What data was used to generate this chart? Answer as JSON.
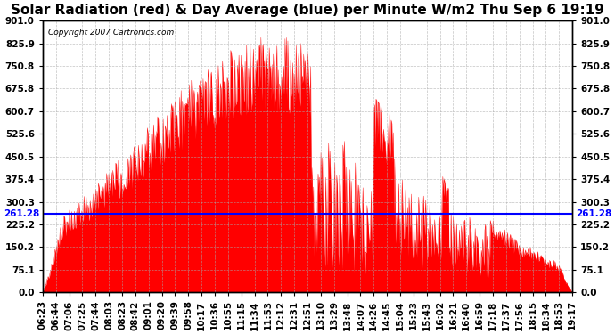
{
  "title": "Solar Radiation (red) & Day Average (blue) per Minute W/m2 Thu Sep 6 19:19",
  "copyright_text": "Copyright 2007 Cartronics.com",
  "avg_line_value": 261.28,
  "y_ticks": [
    0.0,
    75.1,
    150.2,
    225.2,
    300.3,
    375.4,
    450.5,
    525.6,
    600.7,
    675.8,
    750.8,
    825.9,
    901.0
  ],
  "y_min": 0.0,
  "y_max": 901.0,
  "x_labels": [
    "06:23",
    "06:44",
    "07:06",
    "07:25",
    "07:44",
    "08:03",
    "08:23",
    "08:42",
    "09:01",
    "09:20",
    "09:39",
    "09:58",
    "10:17",
    "10:36",
    "10:55",
    "11:15",
    "11:34",
    "11:53",
    "12:12",
    "12:31",
    "12:51",
    "13:10",
    "13:29",
    "13:48",
    "14:07",
    "14:26",
    "14:45",
    "15:04",
    "15:23",
    "15:43",
    "16:02",
    "16:21",
    "16:40",
    "16:59",
    "17:18",
    "17:37",
    "17:56",
    "18:15",
    "18:34",
    "18:53",
    "19:17"
  ],
  "bar_color": "#FF0000",
  "line_color": "#0000FF",
  "bg_color": "#FFFFFF",
  "grid_color": "#AAAAAA",
  "title_fontsize": 11,
  "label_fontsize": 7.5,
  "avg_label_fontsize": 7.5
}
